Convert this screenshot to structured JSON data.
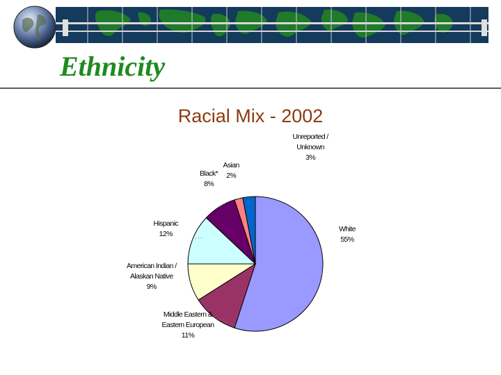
{
  "slide": {
    "title": "Ethnicity"
  },
  "colors": {
    "title": "#1f8a1f",
    "chart_title": "#8b3a0f",
    "rule": "#5a5a5a"
  },
  "icons": {
    "globe": "globe-icon",
    "banner": "world-map-banner"
  },
  "chart_data": {
    "type": "pie",
    "title": "Racial Mix - 2002",
    "start_angle_deg": 0,
    "direction": "clockwise",
    "slices": [
      {
        "label_lines": [
          "White",
          "55%"
        ],
        "value": 55,
        "color": "#9999ff"
      },
      {
        "label_lines": [
          "Middle Eastern &",
          "Eastern European",
          "11%"
        ],
        "value": 11,
        "color": "#993366"
      },
      {
        "label_lines": [
          "American Indian /",
          "Alaskan Native",
          "9%"
        ],
        "value": 9,
        "color": "#ffffcc"
      },
      {
        "label_lines": [
          "Hispanic",
          "12%"
        ],
        "value": 12,
        "color": "#ccffff"
      },
      {
        "label_lines": [
          "Black*",
          "8%"
        ],
        "value": 8,
        "color": "#660066"
      },
      {
        "label_lines": [
          "Asian",
          "2%"
        ],
        "value": 2,
        "color": "#ff8080"
      },
      {
        "label_lines": [
          "Unreported /",
          "Unknown",
          "3%"
        ],
        "value": 3,
        "color": "#0066cc"
      }
    ]
  }
}
